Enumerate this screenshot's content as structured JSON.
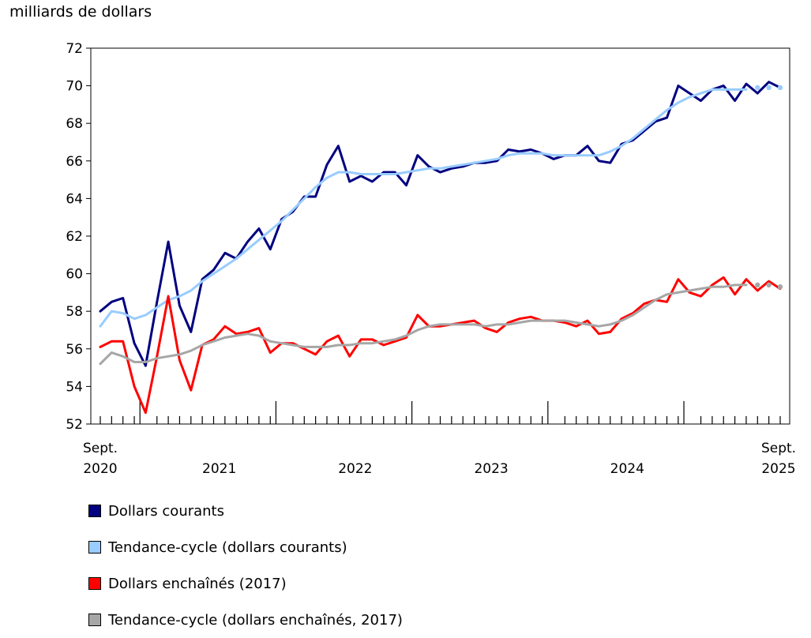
{
  "chart_data": {
    "type": "line",
    "ylabel": "milliards de dollars",
    "ylim": [
      52,
      72
    ],
    "yticks": [
      52,
      54,
      56,
      58,
      60,
      62,
      64,
      66,
      68,
      70,
      72
    ],
    "x_start_label": {
      "month": "Sept.",
      "year": "2020"
    },
    "x_end_label": {
      "month": "Sept.",
      "year": "2025"
    },
    "year_labels": [
      "2021",
      "2022",
      "2023",
      "2024"
    ],
    "months": 61,
    "series": [
      {
        "name": "Dollars courants",
        "color": "#000080",
        "style": "solid",
        "values": [
          58.0,
          58.5,
          58.7,
          56.3,
          55.1,
          58.5,
          61.7,
          58.3,
          56.9,
          59.7,
          60.2,
          61.1,
          60.8,
          61.7,
          62.4,
          61.3,
          62.9,
          63.3,
          64.1,
          64.1,
          65.8,
          66.8,
          64.9,
          65.2,
          64.9,
          65.4,
          65.4,
          64.7,
          66.3,
          65.7,
          65.4,
          65.6,
          65.7,
          65.9,
          65.9,
          66.0,
          66.6,
          66.5,
          66.6,
          66.4,
          66.1,
          66.3,
          66.3,
          66.8,
          66.0,
          65.9,
          66.9,
          67.1,
          67.6,
          68.1,
          68.3,
          70.0,
          69.6,
          69.2,
          69.8,
          70.0,
          69.2,
          70.1,
          69.6,
          70.2,
          69.9
        ],
        "projected_from": 58
      },
      {
        "name": "Tendance-cycle (dollars courants)",
        "color": "#99CCFF",
        "style": "solid",
        "values": [
          57.2,
          58.0,
          57.9,
          57.6,
          57.8,
          58.2,
          58.6,
          58.8,
          59.1,
          59.6,
          60.0,
          60.4,
          60.8,
          61.3,
          61.8,
          62.3,
          62.8,
          63.4,
          64.0,
          64.6,
          65.1,
          65.4,
          65.4,
          65.3,
          65.3,
          65.3,
          65.3,
          65.4,
          65.5,
          65.6,
          65.6,
          65.7,
          65.8,
          65.9,
          66.0,
          66.1,
          66.3,
          66.4,
          66.4,
          66.4,
          66.3,
          66.3,
          66.3,
          66.3,
          66.3,
          66.5,
          66.8,
          67.2,
          67.7,
          68.2,
          68.7,
          69.1,
          69.4,
          69.6,
          69.8,
          69.8,
          69.8,
          69.8,
          69.9,
          69.9,
          69.9
        ],
        "projected_from": 57
      },
      {
        "name": "Dollars enchaînés (2017)",
        "color": "#FF0000",
        "style": "solid",
        "values": [
          56.1,
          56.4,
          56.4,
          54.0,
          52.6,
          55.6,
          58.8,
          55.4,
          53.8,
          56.2,
          56.5,
          57.2,
          56.8,
          56.9,
          57.1,
          55.8,
          56.3,
          56.3,
          56.0,
          55.7,
          56.4,
          56.7,
          55.6,
          56.5,
          56.5,
          56.2,
          56.4,
          56.6,
          57.8,
          57.2,
          57.2,
          57.3,
          57.4,
          57.5,
          57.1,
          56.9,
          57.4,
          57.6,
          57.7,
          57.5,
          57.5,
          57.4,
          57.2,
          57.5,
          56.8,
          56.9,
          57.6,
          57.9,
          58.4,
          58.6,
          58.5,
          59.7,
          59.0,
          58.8,
          59.4,
          59.8,
          58.9,
          59.7,
          59.1,
          59.6,
          59.2
        ],
        "projected_from": 58
      },
      {
        "name": "Tendance-cycle (dollars enchaînés, 2017)",
        "color": "#A6A6A6",
        "style": "solid",
        "values": [
          55.2,
          55.8,
          55.6,
          55.3,
          55.3,
          55.5,
          55.6,
          55.7,
          55.9,
          56.2,
          56.4,
          56.6,
          56.7,
          56.8,
          56.7,
          56.4,
          56.3,
          56.2,
          56.1,
          56.1,
          56.1,
          56.2,
          56.2,
          56.3,
          56.3,
          56.4,
          56.5,
          56.7,
          57.0,
          57.2,
          57.3,
          57.3,
          57.3,
          57.3,
          57.2,
          57.3,
          57.3,
          57.4,
          57.5,
          57.5,
          57.5,
          57.5,
          57.4,
          57.3,
          57.2,
          57.3,
          57.5,
          57.8,
          58.2,
          58.6,
          58.9,
          59.0,
          59.1,
          59.2,
          59.3,
          59.3,
          59.4,
          59.4,
          59.4,
          59.4,
          59.3
        ],
        "projected_from": 57
      }
    ]
  },
  "legend": [
    {
      "label": "Dollars courants",
      "color": "#000080"
    },
    {
      "label": "Tendance-cycle (dollars courants)",
      "color": "#99CCFF"
    },
    {
      "label": "Dollars enchaînés (2017)",
      "color": "#FF0000"
    },
    {
      "label": "Tendance-cycle (dollars enchaînés, 2017)",
      "color": "#A6A6A6"
    }
  ]
}
